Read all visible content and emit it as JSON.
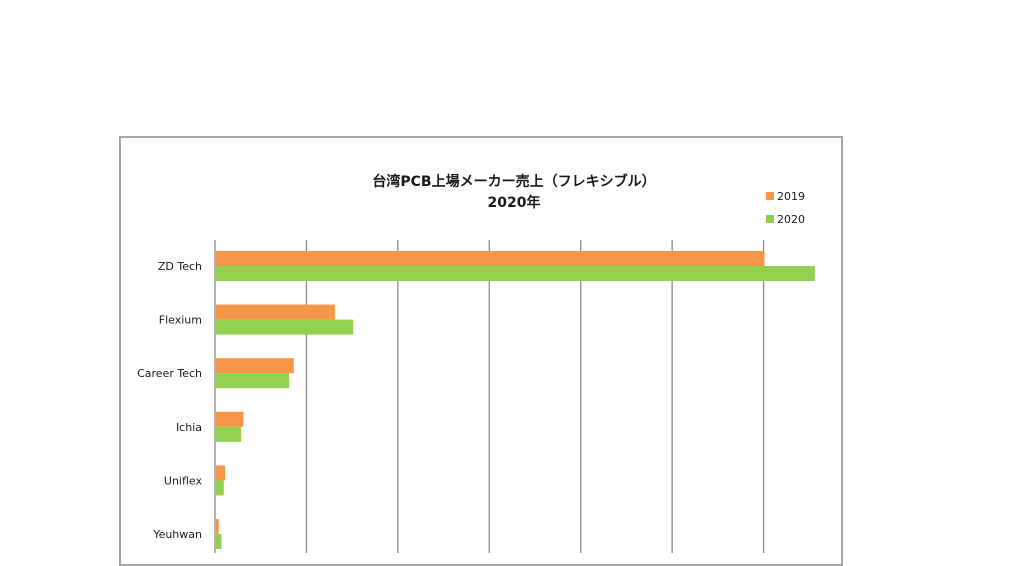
{
  "chart_data": {
    "type": "bar",
    "orientation": "horizontal",
    "title": "台湾PCB上場メーカー売上（フレキシブル）",
    "subtitle": "2020年",
    "categories": [
      "ZD Tech",
      "Flexium",
      "Career Tech",
      "Ichia",
      "Uniflex",
      "Yeuhwan"
    ],
    "series": [
      {
        "name": "2019",
        "color": "#f79646",
        "values": [
          120,
          26,
          17,
          6,
          2,
          0.6
        ]
      },
      {
        "name": "2020",
        "color": "#92d050",
        "values": [
          131,
          30,
          16,
          5.5,
          1.7,
          1.2
        ]
      }
    ],
    "xlim": [
      0,
      140
    ],
    "x_gridline_step": 20,
    "grid": true,
    "legend_position": "top-right",
    "xlabel": "",
    "ylabel": ""
  }
}
